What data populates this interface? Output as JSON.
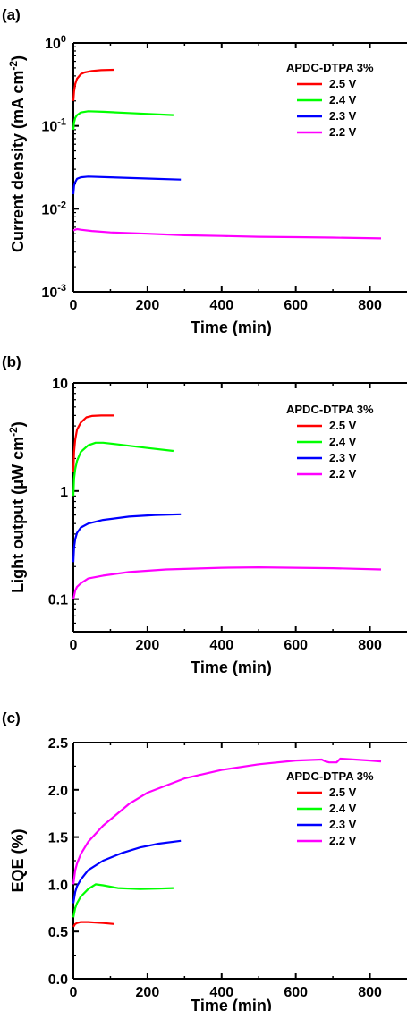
{
  "chart_data": [
    {
      "panel": "(a)",
      "type": "line",
      "xlabel": "Time (min)",
      "ylabel": "Current density (mA cm",
      "ylabel_sup": "-2",
      "ylabel_end": ")",
      "y_scale": "log",
      "xlim": [
        0,
        900
      ],
      "ylim": [
        0.001,
        1
      ],
      "x_ticks": [
        0,
        200,
        400,
        600,
        800
      ],
      "x_tick_labels": [
        "0",
        "200",
        "400",
        "600",
        "800"
      ],
      "y_ticks": [
        0.001,
        0.01,
        0.1,
        1
      ],
      "y_tick_base": [
        "10",
        "10",
        "10",
        "10"
      ],
      "y_tick_exp": [
        "-3",
        "-2",
        "-1",
        "0"
      ],
      "legend": {
        "title": "APDC-DTPA 3%",
        "position": "top-right"
      },
      "series": [
        {
          "name": "2.5 V",
          "color": "#ff0000",
          "x": [
            0,
            2,
            5,
            10,
            20,
            30,
            50,
            75,
            110
          ],
          "y": [
            0.2,
            0.26,
            0.32,
            0.37,
            0.42,
            0.44,
            0.46,
            0.47,
            0.475
          ]
        },
        {
          "name": "2.4 V",
          "color": "#00ff00",
          "x": [
            0,
            2,
            5,
            10,
            20,
            40,
            80,
            150,
            270
          ],
          "y": [
            0.09,
            0.11,
            0.125,
            0.135,
            0.145,
            0.15,
            0.148,
            0.143,
            0.135
          ]
        },
        {
          "name": "2.3 V",
          "color": "#0000ff",
          "x": [
            0,
            2,
            5,
            10,
            20,
            40,
            100,
            200,
            290
          ],
          "y": [
            0.015,
            0.019,
            0.021,
            0.023,
            0.024,
            0.0245,
            0.024,
            0.0232,
            0.0225
          ]
        },
        {
          "name": "2.2 V",
          "color": "#ff00ff",
          "x": [
            0,
            10,
            20,
            50,
            100,
            200,
            300,
            400,
            500,
            600,
            700,
            830
          ],
          "y": [
            0.0055,
            0.0057,
            0.0056,
            0.0054,
            0.0052,
            0.005,
            0.0048,
            0.0047,
            0.0046,
            0.00455,
            0.0045,
            0.0044
          ]
        }
      ]
    },
    {
      "panel": "(b)",
      "type": "line",
      "xlabel": "Time (min)",
      "ylabel": "Light output (μW cm",
      "ylabel_sup": "-2",
      "ylabel_end": ")",
      "y_scale": "log",
      "xlim": [
        0,
        900
      ],
      "ylim": [
        0.05,
        10
      ],
      "x_ticks": [
        0,
        200,
        400,
        600,
        800
      ],
      "x_tick_labels": [
        "0",
        "200",
        "400",
        "600",
        "800"
      ],
      "y_ticks": [
        0.1,
        1,
        10
      ],
      "y_tick_labels": [
        "0.1",
        "1",
        "10"
      ],
      "legend": {
        "title": "APDC-DTPA 3%",
        "position": "top-right"
      },
      "series": [
        {
          "name": "2.5 V",
          "color": "#ff0000",
          "x": [
            0,
            2,
            5,
            10,
            20,
            35,
            50,
            75,
            110
          ],
          "y": [
            1.5,
            2.3,
            3.0,
            3.7,
            4.3,
            4.8,
            4.95,
            5.0,
            5.0
          ]
        },
        {
          "name": "2.4 V",
          "color": "#00ff00",
          "x": [
            0,
            2,
            5,
            10,
            20,
            40,
            60,
            80,
            120,
            200,
            270
          ],
          "y": [
            0.9,
            1.3,
            1.6,
            1.9,
            2.3,
            2.65,
            2.8,
            2.8,
            2.7,
            2.5,
            2.35
          ]
        },
        {
          "name": "2.3 V",
          "color": "#0000ff",
          "x": [
            0,
            2,
            5,
            10,
            20,
            40,
            80,
            150,
            220,
            290
          ],
          "y": [
            0.22,
            0.3,
            0.36,
            0.41,
            0.46,
            0.5,
            0.54,
            0.58,
            0.6,
            0.61
          ]
        },
        {
          "name": "2.2 V",
          "color": "#ff00ff",
          "x": [
            0,
            5,
            10,
            20,
            40,
            80,
            150,
            250,
            400,
            500,
            600,
            700,
            830
          ],
          "y": [
            0.1,
            0.12,
            0.13,
            0.14,
            0.155,
            0.165,
            0.178,
            0.188,
            0.195,
            0.197,
            0.195,
            0.193,
            0.188
          ]
        }
      ]
    },
    {
      "panel": "(c)",
      "type": "line",
      "xlabel": "Time (min)",
      "ylabel": "EQE (%)",
      "y_scale": "linear",
      "xlim": [
        0,
        900
      ],
      "ylim": [
        0,
        2.5
      ],
      "x_ticks": [
        0,
        200,
        400,
        600,
        800
      ],
      "x_tick_labels": [
        "0",
        "200",
        "400",
        "600",
        "800"
      ],
      "y_ticks": [
        0,
        0.5,
        1.0,
        1.5,
        2.0,
        2.5
      ],
      "y_tick_labels": [
        "0.0",
        "0.5",
        "1.0",
        "1.5",
        "2.0",
        "2.5"
      ],
      "legend": {
        "title": "APDC-DTPA 3%",
        "position": "right"
      },
      "series": [
        {
          "name": "2.5 V",
          "color": "#ff0000",
          "x": [
            0,
            5,
            10,
            20,
            40,
            60,
            80,
            110
          ],
          "y": [
            0.55,
            0.58,
            0.59,
            0.6,
            0.6,
            0.595,
            0.59,
            0.58
          ]
        },
        {
          "name": "2.4 V",
          "color": "#00ff00",
          "x": [
            0,
            5,
            10,
            20,
            40,
            60,
            80,
            120,
            180,
            230,
            270
          ],
          "y": [
            0.65,
            0.75,
            0.8,
            0.87,
            0.95,
            1.0,
            0.99,
            0.96,
            0.95,
            0.955,
            0.96
          ]
        },
        {
          "name": "2.3 V",
          "color": "#0000ff",
          "x": [
            0,
            5,
            10,
            20,
            40,
            80,
            130,
            180,
            230,
            290
          ],
          "y": [
            0.8,
            0.92,
            0.98,
            1.05,
            1.15,
            1.25,
            1.33,
            1.39,
            1.43,
            1.46
          ]
        },
        {
          "name": "2.2 V",
          "color": "#ff00ff",
          "x": [
            0,
            5,
            10,
            20,
            40,
            80,
            150,
            200,
            300,
            400,
            500,
            600,
            670,
            680,
            690,
            710,
            720,
            800,
            830
          ],
          "y": [
            1.0,
            1.15,
            1.22,
            1.32,
            1.45,
            1.62,
            1.85,
            1.97,
            2.12,
            2.21,
            2.27,
            2.31,
            2.32,
            2.3,
            2.29,
            2.29,
            2.33,
            2.31,
            2.3
          ]
        }
      ]
    }
  ]
}
